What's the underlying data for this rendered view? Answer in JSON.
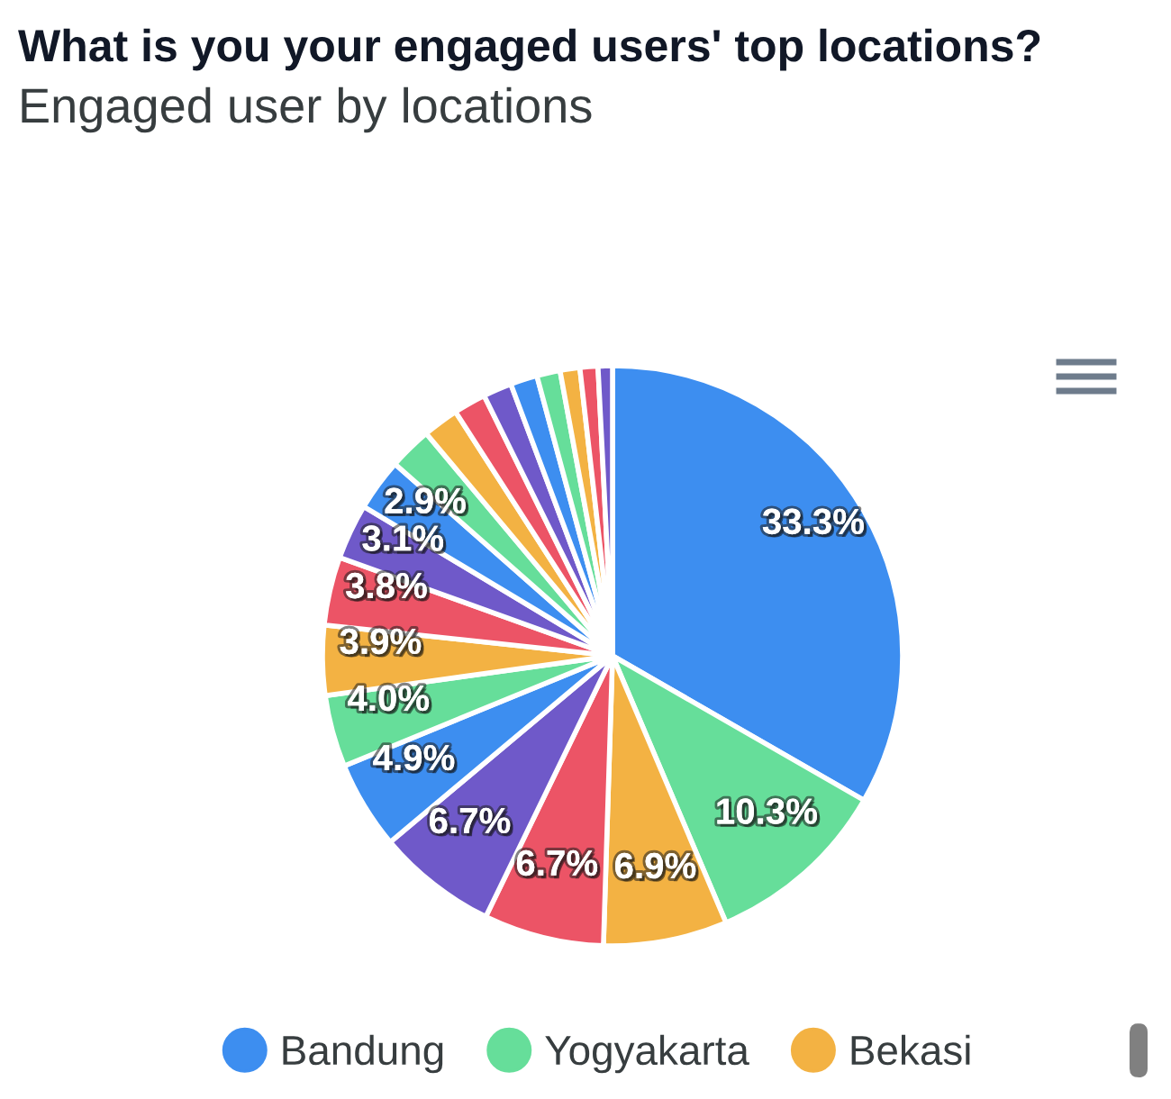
{
  "chart_data": {
    "type": "pie",
    "title": "What is you your engaged users' top locations?",
    "subtitle": "Engaged user by locations",
    "categories": [
      "Bandung",
      "Yogyakarta",
      "Bekasi",
      null,
      null,
      null,
      null,
      null,
      null,
      null,
      null,
      null,
      null,
      null,
      null,
      null,
      null,
      null,
      null,
      null
    ],
    "values": [
      33.3,
      10.3,
      6.9,
      6.7,
      6.7,
      4.9,
      4.0,
      3.9,
      3.8,
      3.1,
      2.9,
      2.4,
      2.0,
      1.8,
      1.6,
      1.5,
      1.3,
      1.1,
      1.0,
      0.8
    ],
    "colors": [
      "#3d8ef0",
      "#66de9a",
      "#f3b243",
      "#ec5466",
      "#6f59c9",
      "#3d8ef0",
      "#66de9a",
      "#f3b243",
      "#ec5466",
      "#6f59c9",
      "#3d8ef0",
      "#66de9a",
      "#f3b243",
      "#ec5466",
      "#6f59c9",
      "#3d8ef0",
      "#66de9a",
      "#f3b243",
      "#ec5466",
      "#6f59c9"
    ],
    "value_labels": [
      "33.3%",
      "10.3%",
      "6.9%",
      "6.7%",
      "6.7%",
      "4.9%",
      "4.0%",
      "3.9%",
      "3.8%",
      "3.1%",
      "2.9%",
      null,
      null,
      null,
      null,
      null,
      null,
      null,
      null,
      null
    ],
    "legend": "bottom"
  }
}
